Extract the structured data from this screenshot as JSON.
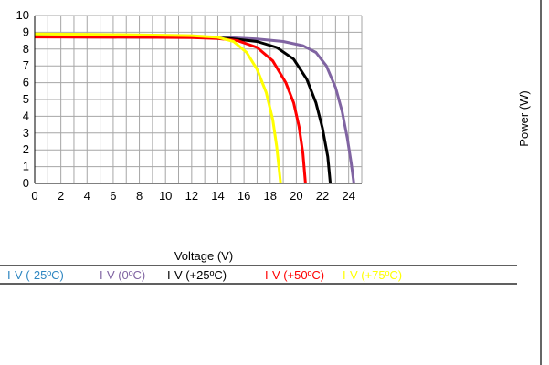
{
  "chart_data": {
    "type": "line",
    "xlabel": "Voltage (V)",
    "right_axis_label": "Power (W)",
    "xlim": [
      0,
      25
    ],
    "ylim": [
      0,
      10
    ],
    "x_ticks": [
      "0",
      "2",
      "4",
      "6",
      "8",
      "10",
      "12",
      "14",
      "16",
      "18",
      "20",
      "22",
      "24"
    ],
    "y_ticks": [
      "0",
      "1",
      "2",
      "3",
      "4",
      "5",
      "6",
      "7",
      "8",
      "9",
      "10"
    ],
    "grid": true,
    "legend_position": "bottom",
    "series": [
      {
        "name": "I-V (-25ºC)",
        "color": "#2e86c1",
        "points": []
      },
      {
        "name": "I-V (0ºC)",
        "color": "#8064a2",
        "points": [
          [
            0,
            8.75
          ],
          [
            4,
            8.74
          ],
          [
            8,
            8.73
          ],
          [
            12,
            8.72
          ],
          [
            15,
            8.68
          ],
          [
            17,
            8.6
          ],
          [
            19,
            8.45
          ],
          [
            20.5,
            8.2
          ],
          [
            21.5,
            7.8
          ],
          [
            22.3,
            7.0
          ],
          [
            23,
            5.7
          ],
          [
            23.5,
            4.3
          ],
          [
            23.9,
            2.7
          ],
          [
            24.2,
            1.2
          ],
          [
            24.4,
            0
          ]
        ]
      },
      {
        "name": "I-V (+25ºC)",
        "color": "#000000",
        "points": [
          [
            0,
            8.73
          ],
          [
            4,
            8.72
          ],
          [
            8,
            8.71
          ],
          [
            12,
            8.7
          ],
          [
            15,
            8.62
          ],
          [
            17,
            8.45
          ],
          [
            18.5,
            8.1
          ],
          [
            19.8,
            7.4
          ],
          [
            20.8,
            6.2
          ],
          [
            21.5,
            4.8
          ],
          [
            22,
            3.3
          ],
          [
            22.4,
            1.6
          ],
          [
            22.6,
            0
          ]
        ]
      },
      {
        "name": "I-V (+50ºC)",
        "color": "#ff0000",
        "points": [
          [
            0,
            8.72
          ],
          [
            4,
            8.71
          ],
          [
            8,
            8.7
          ],
          [
            12,
            8.68
          ],
          [
            14,
            8.63
          ],
          [
            15.5,
            8.5
          ],
          [
            17,
            8.1
          ],
          [
            18.2,
            7.3
          ],
          [
            19.2,
            6.0
          ],
          [
            19.8,
            4.8
          ],
          [
            20.2,
            3.4
          ],
          [
            20.5,
            1.8
          ],
          [
            20.7,
            0
          ]
        ]
      },
      {
        "name": "I-V (+75ºC)",
        "color": "#ffff00",
        "points": [
          [
            0,
            8.9
          ],
          [
            4,
            8.88
          ],
          [
            8,
            8.85
          ],
          [
            12,
            8.8
          ],
          [
            14,
            8.7
          ],
          [
            15.2,
            8.45
          ],
          [
            16.2,
            7.8
          ],
          [
            17,
            6.8
          ],
          [
            17.7,
            5.4
          ],
          [
            18.2,
            3.8
          ],
          [
            18.5,
            2.2
          ],
          [
            18.8,
            0
          ]
        ]
      }
    ]
  }
}
